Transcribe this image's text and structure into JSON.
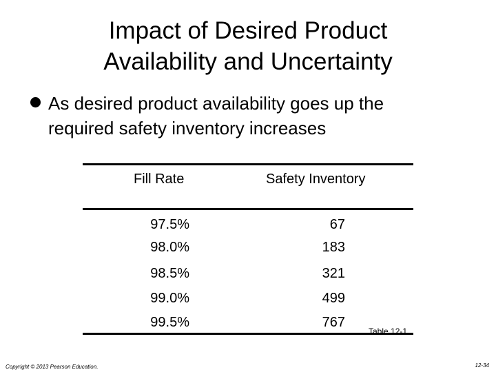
{
  "slide": {
    "title_line1": "Impact of Desired Product",
    "title_line2": "Availability and Uncertainty",
    "bullet_line1": "As desired product availability goes up the",
    "bullet_line2": "required safety inventory increases"
  },
  "table": {
    "headers": [
      "Fill Rate",
      "Safety Inventory"
    ],
    "rows": [
      {
        "fill_rate": "97.5%",
        "safety_inventory": "67"
      },
      {
        "fill_rate": "98.0%",
        "safety_inventory": "183"
      },
      {
        "fill_rate": "98.5%",
        "safety_inventory": "321"
      },
      {
        "fill_rate": "99.0%",
        "safety_inventory": "499"
      },
      {
        "fill_rate": "99.5%",
        "safety_inventory": "767"
      }
    ],
    "caption": "Table 12-1"
  },
  "footer": {
    "copyright": "Copyright © 2013 Pearson Education.",
    "page_number": "12-34"
  }
}
